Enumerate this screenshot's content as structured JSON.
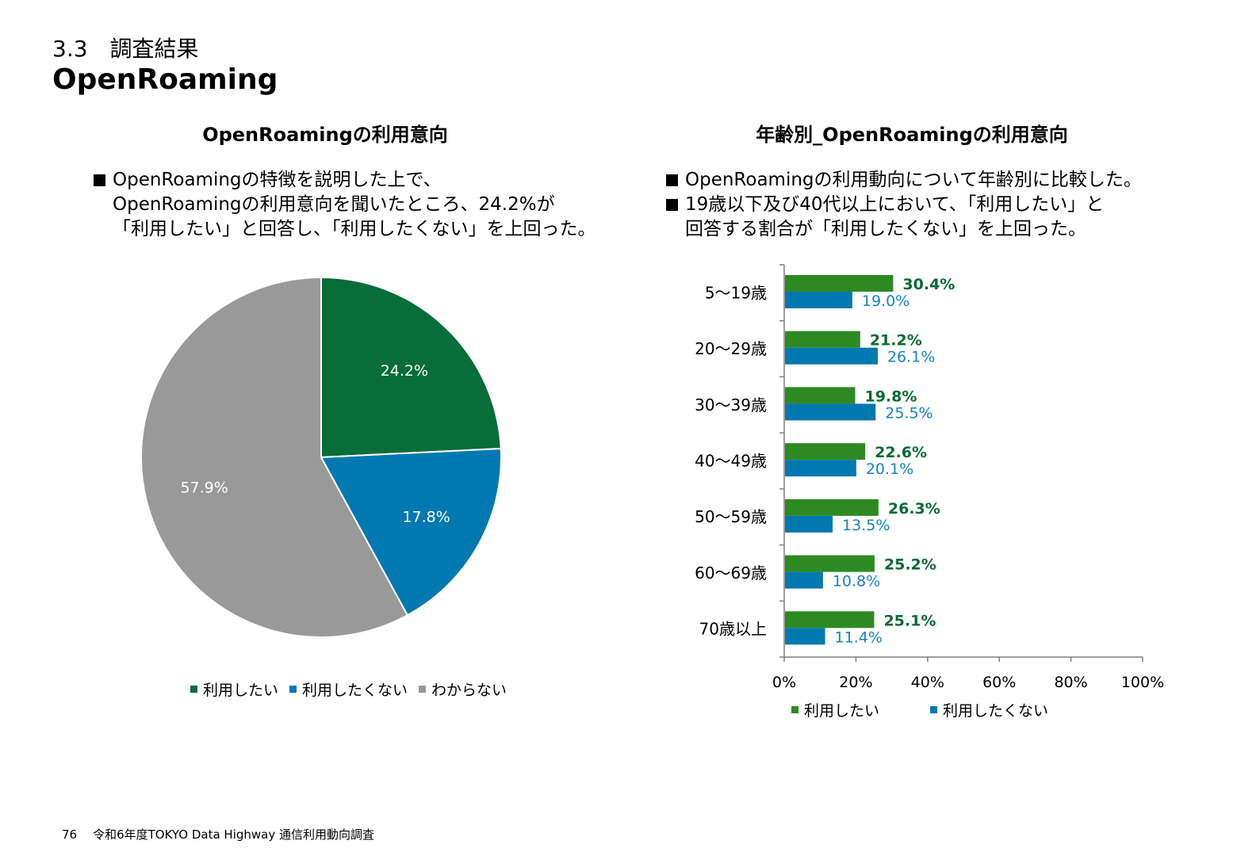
{
  "header": {
    "section": "3.3　調査結果",
    "title": "OpenRoaming"
  },
  "left": {
    "title": "OpenRoamingの利用意向",
    "bullets": [
      "OpenRoamingの特徴を説明した上で、\nOpenRoamingの利用意向を聞いたところ、24.2%が\n「利用したい」と回答し、「利用したくない」を上回った。"
    ]
  },
  "right": {
    "title": "年齢別_OpenRoamingの利用意向",
    "bullets": [
      "OpenRoamingの利用動向について年齢別に比較した。",
      "19歳以下及び40代以上において、「利用したい」と\n回答する割合が「利用したくない」を上回った。"
    ]
  },
  "footer": {
    "page": "76",
    "text": "令和6年度TOKYO Data Highway 通信利用動向調査"
  },
  "chart_data": [
    {
      "type": "pie",
      "title": "OpenRoamingの利用意向",
      "categories": [
        "利用したい",
        "利用したくない",
        "わからない"
      ],
      "values": [
        24.2,
        17.8,
        57.9
      ],
      "labels": [
        "24.2%",
        "17.8%",
        "57.9%"
      ],
      "colors": [
        "#076d39",
        "#0079b0",
        "#999999"
      ],
      "legend": "bottom"
    },
    {
      "type": "bar",
      "orientation": "horizontal",
      "title": "年齢別_OpenRoamingの利用意向",
      "categories": [
        "5～19歳",
        "20～29歳",
        "30～39歳",
        "40～49歳",
        "50～59歳",
        "60～69歳",
        "70歳以上"
      ],
      "series": [
        {
          "name": "利用したい",
          "values": [
            30.4,
            21.2,
            19.8,
            22.6,
            26.3,
            25.2,
            25.1
          ],
          "color": "#2d8a22",
          "label_color": "#0a6a32"
        },
        {
          "name": "利用したくない",
          "values": [
            19.0,
            26.1,
            25.5,
            20.1,
            13.5,
            10.8,
            11.4
          ],
          "color": "#0079b0",
          "label_color": "#1285bf"
        }
      ],
      "xlim": [
        0,
        100
      ],
      "xticks": [
        "0%",
        "20%",
        "40%",
        "60%",
        "80%",
        "100%"
      ],
      "legend": "bottom"
    }
  ]
}
